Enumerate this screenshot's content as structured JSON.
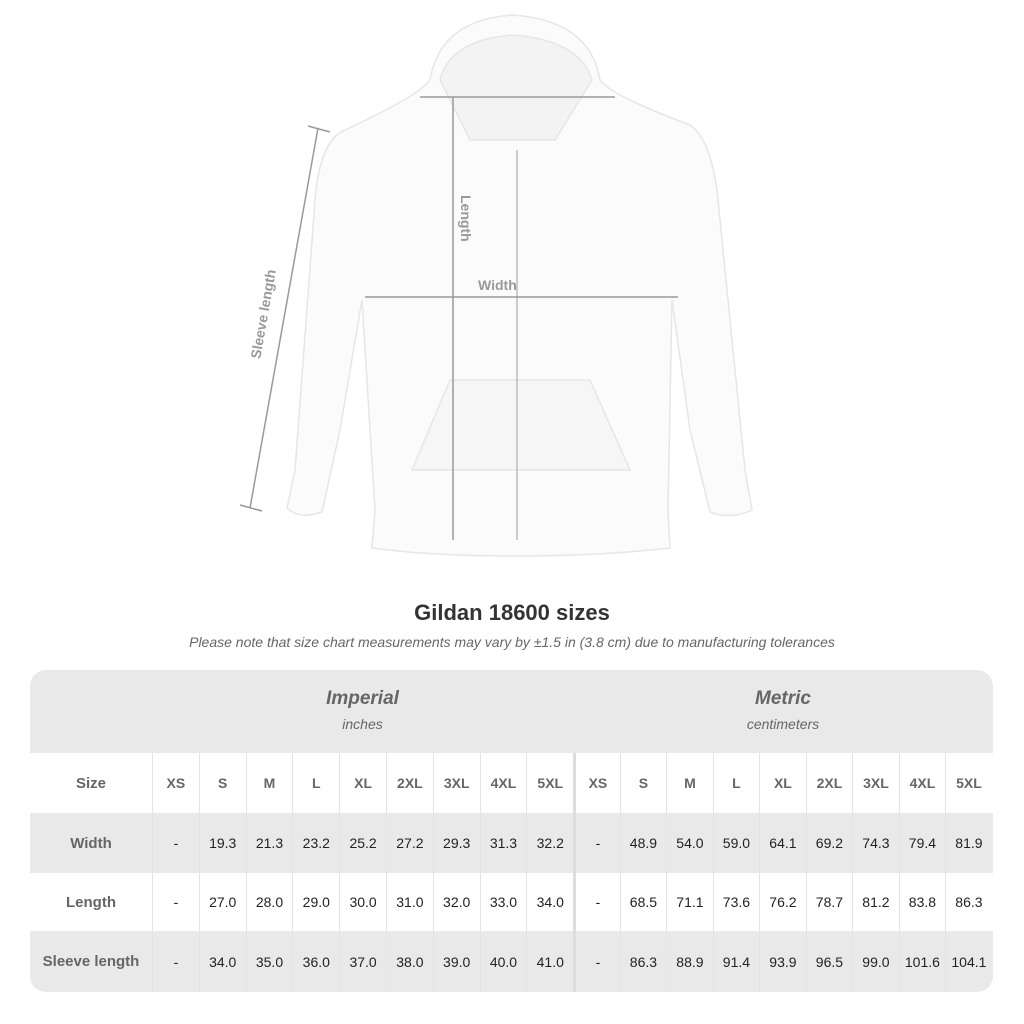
{
  "diagram": {
    "labels": {
      "length": "Length",
      "width": "Width",
      "sleeve": "Sleeve length"
    }
  },
  "title": "Gildan 18600 sizes",
  "note": "Please note that size chart measurements may vary by ±1.5 in (3.8 cm) due to manufacturing tolerances",
  "table": {
    "imperial": {
      "name": "Imperial",
      "unit": "inches"
    },
    "metric": {
      "name": "Metric",
      "unit": "centimeters"
    },
    "size_label": "Size",
    "sizes": [
      "XS",
      "S",
      "M",
      "L",
      "XL",
      "2XL",
      "3XL",
      "4XL",
      "5XL"
    ],
    "rows": [
      {
        "label": "Width",
        "imperial": [
          "-",
          "19.3",
          "21.3",
          "23.2",
          "25.2",
          "27.2",
          "29.3",
          "31.3",
          "32.2"
        ],
        "metric": [
          "-",
          "48.9",
          "54.0",
          "59.0",
          "64.1",
          "69.2",
          "74.3",
          "79.4",
          "81.9"
        ]
      },
      {
        "label": "Length",
        "imperial": [
          "-",
          "27.0",
          "28.0",
          "29.0",
          "30.0",
          "31.0",
          "32.0",
          "33.0",
          "34.0"
        ],
        "metric": [
          "-",
          "68.5",
          "71.1",
          "73.6",
          "76.2",
          "78.7",
          "81.2",
          "83.8",
          "86.3"
        ]
      },
      {
        "label": "Sleeve length",
        "imperial": [
          "-",
          "34.0",
          "35.0",
          "36.0",
          "37.0",
          "38.0",
          "39.0",
          "40.0",
          "41.0"
        ],
        "metric": [
          "-",
          "86.3",
          "88.9",
          "91.4",
          "93.9",
          "96.5",
          "99.0",
          "101.6",
          "104.1"
        ]
      }
    ]
  }
}
